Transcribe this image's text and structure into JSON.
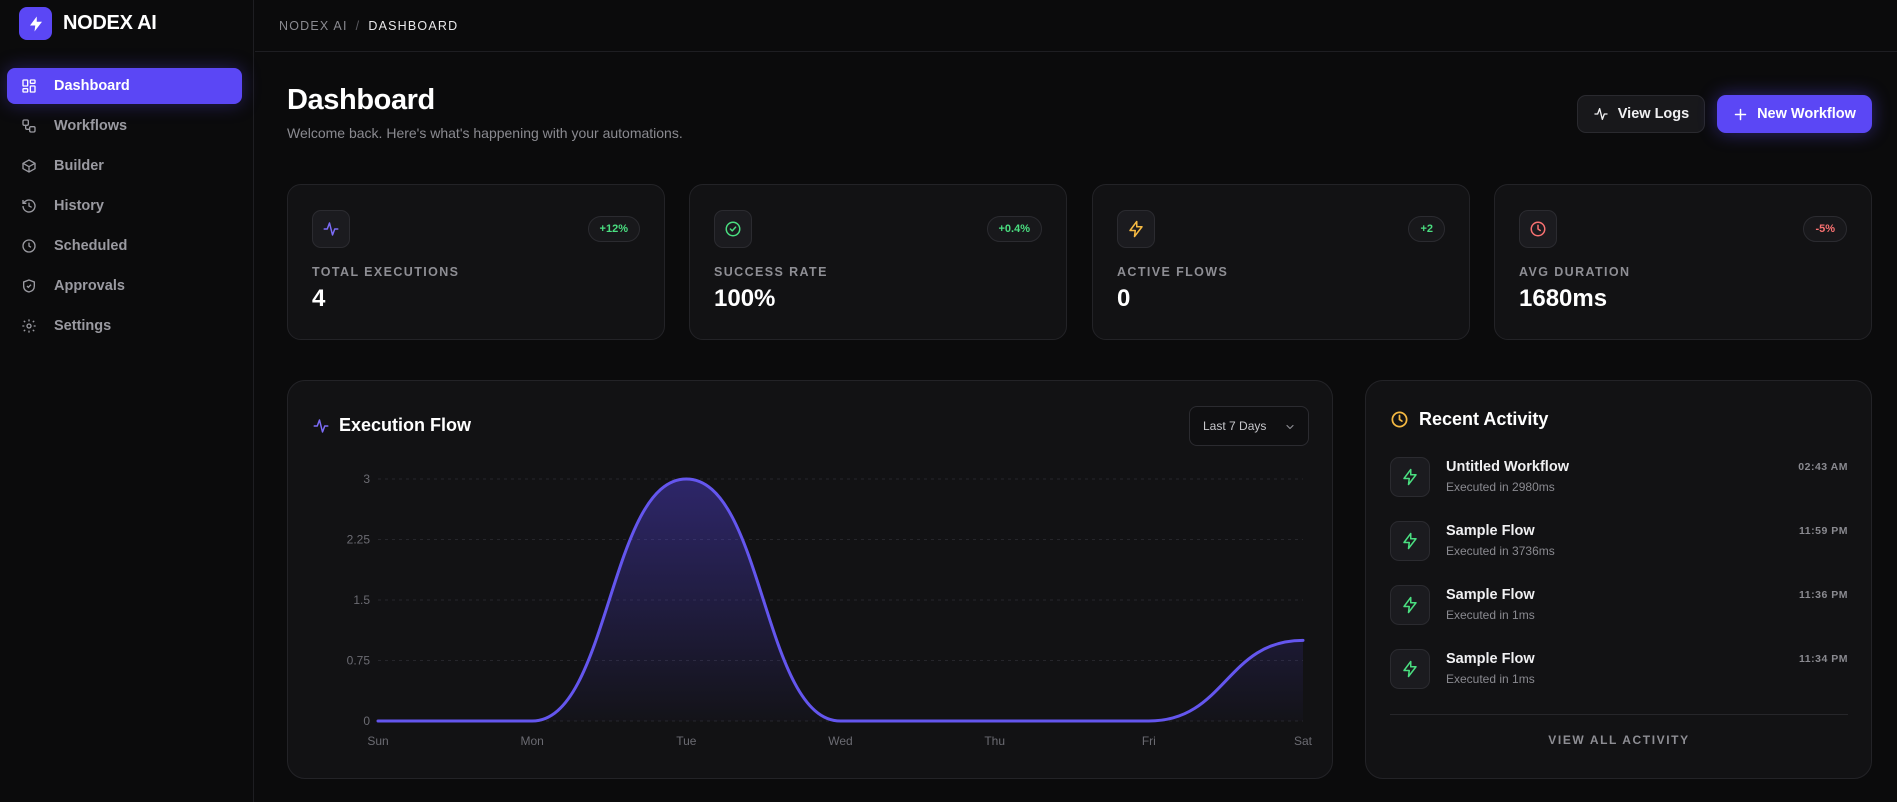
{
  "app": {
    "name": "NODEX AI"
  },
  "sidebar": {
    "items": [
      {
        "label": "Dashboard",
        "icon": "layout-grid-icon",
        "active": true
      },
      {
        "label": "Workflows",
        "icon": "workflow-icon",
        "active": false
      },
      {
        "label": "Builder",
        "icon": "box-icon",
        "active": false
      },
      {
        "label": "History",
        "icon": "history-icon",
        "active": false
      },
      {
        "label": "Scheduled",
        "icon": "clock-icon",
        "active": false
      },
      {
        "label": "Approvals",
        "icon": "shield-check-icon",
        "active": false
      },
      {
        "label": "Settings",
        "icon": "gear-icon",
        "active": false
      }
    ]
  },
  "breadcrumb": {
    "parent": "NODEX AI",
    "separator": "/",
    "current": "DASHBOARD"
  },
  "header": {
    "title": "Dashboard",
    "subtitle": "Welcome back. Here's what's happening with your automations.",
    "view_logs_label": "View Logs",
    "new_workflow_label": "New Workflow"
  },
  "colors": {
    "accent": "#5b47f5",
    "positive": "#4ade80",
    "negative": "#f87171",
    "warning": "#f5b942",
    "activity_icon": "#4ade80"
  },
  "stats": [
    {
      "label": "TOTAL EXECUTIONS",
      "value": "4",
      "badge": "+12%",
      "badge_tone": "positive",
      "icon": "activity-pulse-icon"
    },
    {
      "label": "SUCCESS RATE",
      "value": "100%",
      "badge": "+0.4%",
      "badge_tone": "positive",
      "icon": "check-circle-icon"
    },
    {
      "label": "ACTIVE FLOWS",
      "value": "0",
      "badge": "+2",
      "badge_tone": "positive",
      "icon": "zap-icon"
    },
    {
      "label": "AVG DURATION",
      "value": "1680ms",
      "badge": "-5%",
      "badge_tone": "negative",
      "icon": "clock-icon"
    }
  ],
  "chart": {
    "title": "Execution Flow",
    "range_selected": "Last 7 Days"
  },
  "chart_data": {
    "type": "area",
    "categories": [
      "Sun",
      "Mon",
      "Tue",
      "Wed",
      "Thu",
      "Fri",
      "Sat"
    ],
    "series": [
      {
        "values": [
          0,
          0,
          3,
          0,
          0,
          0,
          1
        ]
      }
    ],
    "y_ticks": [
      "0",
      "0.75",
      "1.5",
      "2.25",
      "3"
    ],
    "ylim": [
      0,
      3
    ],
    "grid": true,
    "smooth": true
  },
  "activity": {
    "title": "Recent Activity",
    "items": [
      {
        "name": "Untitled Workflow",
        "detail": "Executed in 2980ms",
        "time": "02:43 AM"
      },
      {
        "name": "Sample Flow",
        "detail": "Executed in 3736ms",
        "time": "11:59 PM"
      },
      {
        "name": "Sample Flow",
        "detail": "Executed in 1ms",
        "time": "11:36 PM"
      },
      {
        "name": "Sample Flow",
        "detail": "Executed in 1ms",
        "time": "11:34 PM"
      }
    ],
    "view_all_label": "VIEW ALL ACTIVITY"
  }
}
